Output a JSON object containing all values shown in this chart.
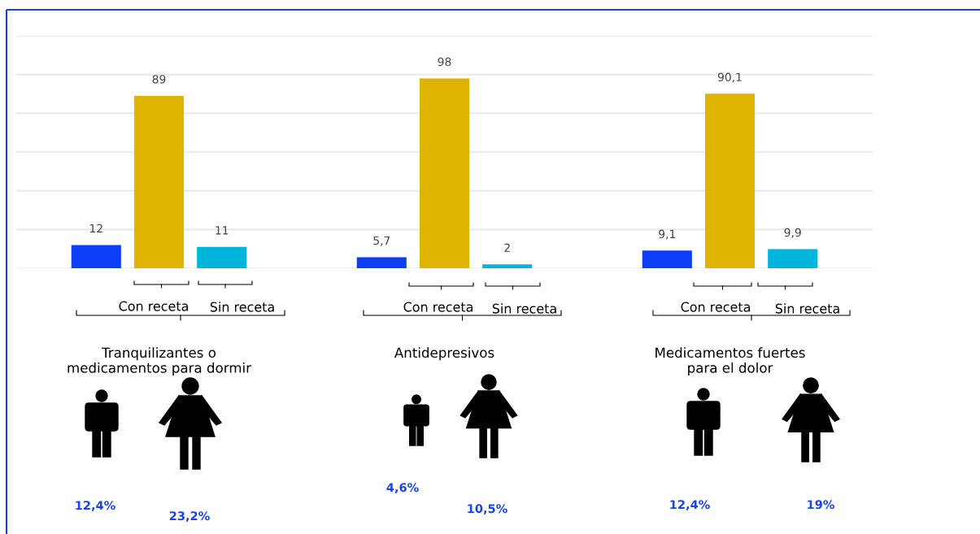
{
  "chart_data": {
    "type": "bar",
    "categories": [
      "Tranquilizantes o\nmedicamentos para dormir",
      "Antidepresivos",
      "Medicamentos fuertes\npara el dolor"
    ],
    "series": [
      {
        "color": "#0a3ff5",
        "values": [
          12,
          5.7,
          9.1
        ],
        "value_labels": [
          "12",
          "5,7",
          "9,1"
        ]
      },
      {
        "color": "#dfb400",
        "values": [
          89,
          98,
          90.1
        ],
        "value_labels": [
          "89",
          "98",
          "90,1"
        ]
      },
      {
        "color": "#00b4dc",
        "values": [
          11,
          2,
          9.9
        ],
        "value_labels": [
          "11",
          "2",
          "9,9"
        ]
      }
    ],
    "ylim": [
      0,
      120
    ],
    "yticks": [
      {
        "value": 0,
        "label": null
      },
      {
        "value": 20,
        "label": null
      },
      {
        "value": 40,
        "label": null
      },
      {
        "value": 60,
        "label": null
      },
      {
        "value": 80,
        "label": null
      },
      {
        "value": 100,
        "label": null
      },
      {
        "value": 120,
        "label": null
      }
    ],
    "grid": "y",
    "tick_labels": "x",
    "annotations": [
      "Con receta",
      "Sin receta",
      "Con receta",
      "Sin receta",
      "Con receta",
      "Sin receta",
      "12,4%",
      "23,2%",
      "4,6%",
      "10,5%",
      "12,4%",
      "19%"
    ]
  }
}
